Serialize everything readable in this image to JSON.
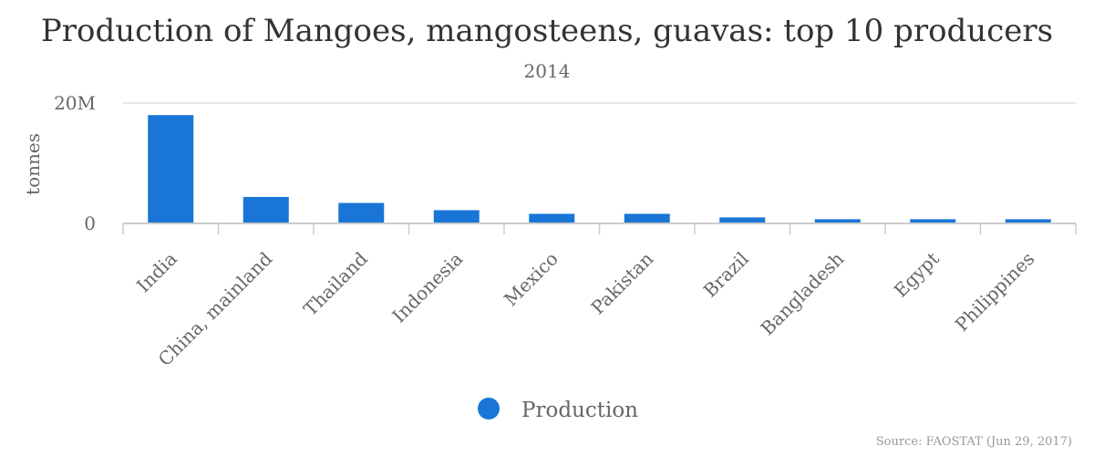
{
  "chart_data": {
    "type": "bar",
    "title": "Production of Mangoes, mangosteens, guavas: top 10 producers",
    "subtitle": "2014",
    "ylabel": "tonnes",
    "ylim": [
      0,
      20000000
    ],
    "yticks": [
      {
        "value": 0,
        "label": "0"
      },
      {
        "value": 20000000,
        "label": "20M"
      }
    ],
    "categories": [
      "India",
      "China, mainland",
      "Thailand",
      "Indonesia",
      "Mexico",
      "Pakistan",
      "Brazil",
      "Bangladesh",
      "Egypt",
      "Philippines"
    ],
    "series": [
      {
        "name": "Production",
        "color": "#1976d6",
        "values": [
          18000000,
          4400000,
          3400000,
          2200000,
          1600000,
          1600000,
          1000000,
          700000,
          700000,
          700000
        ]
      }
    ],
    "legend_position": "bottom-center",
    "grid": true
  },
  "source": "Source: FAOSTAT (Jun 29, 2017)"
}
